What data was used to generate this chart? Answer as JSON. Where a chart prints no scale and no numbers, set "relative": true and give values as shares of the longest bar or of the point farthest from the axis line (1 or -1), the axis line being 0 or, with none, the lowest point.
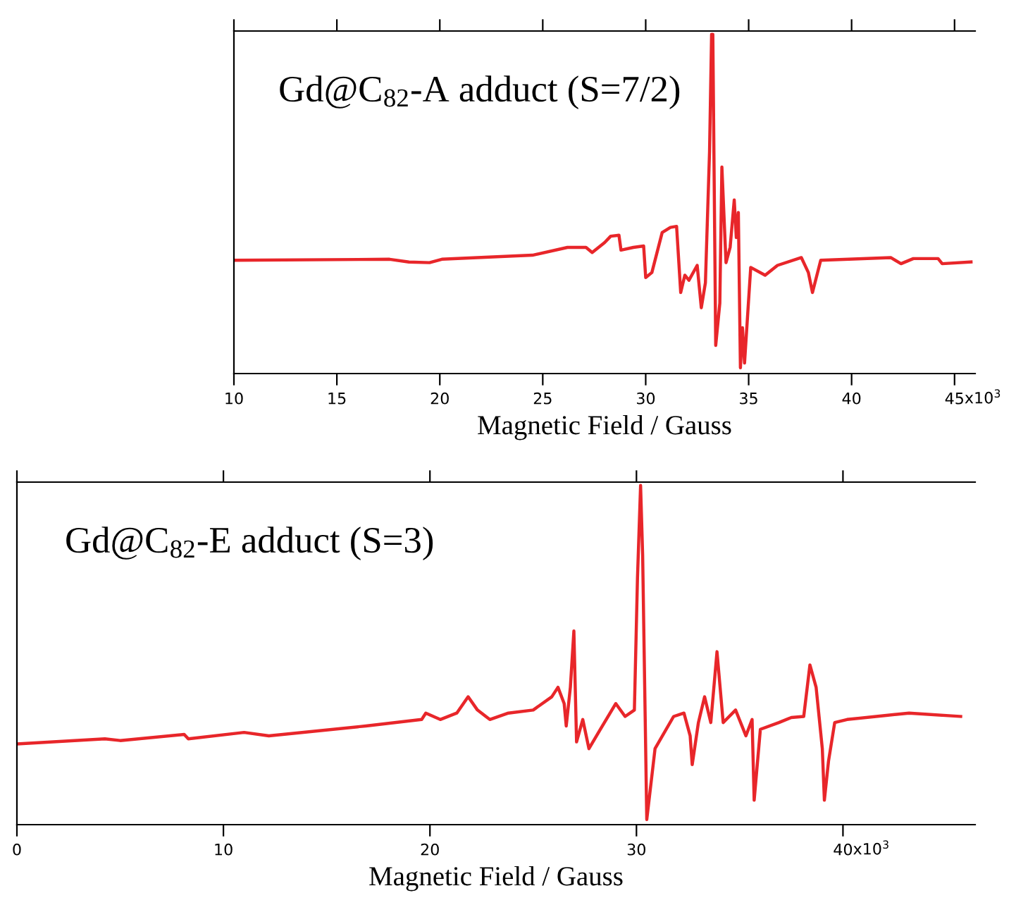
{
  "chart_data": [
    {
      "type": "line",
      "relative": true,
      "xlabel": "Magnetic Field / Gauss",
      "annotations": [
        "Gd@C$_{82}$-A adduct (S=7/2)",
        "x10$^{3}$"
      ],
      "xlim": [
        10,
        46
      ],
      "xticks": [
        10,
        15,
        20,
        25,
        30,
        35,
        40,
        45
      ],
      "grid": false,
      "legend": false,
      "marker": "none",
      "line_style": "solid",
      "series": [
        {
          "color": "#e8262a",
          "x": [
            10,
            17.56,
            18.5,
            19.5,
            20.1,
            24.5,
            26.2,
            27.1,
            27.4,
            28.0,
            28.3,
            28.7,
            28.8,
            29.4,
            29.9,
            30.0,
            30.3,
            30.8,
            31.2,
            31.5,
            31.7,
            31.9,
            32.1,
            32.5,
            32.7,
            32.9,
            33.1,
            33.2,
            33.26,
            33.4,
            33.6,
            33.7,
            33.9,
            34.1,
            34.3,
            34.4,
            34.5,
            34.6,
            34.7,
            34.8,
            35.1,
            35.8,
            36.4,
            37.56,
            37.9,
            38.1,
            38.5,
            41.9,
            42.4,
            43.0,
            44.2,
            44.4,
            45.8
          ],
          "values": [
            0.334,
            0.337,
            0.329,
            0.327,
            0.337,
            0.349,
            0.372,
            0.372,
            0.357,
            0.386,
            0.405,
            0.408,
            0.364,
            0.372,
            0.376,
            0.283,
            0.298,
            0.416,
            0.431,
            0.434,
            0.239,
            0.29,
            0.275,
            0.319,
            0.194,
            0.268,
            0.653,
            1.0,
            1.0,
            0.083,
            0.208,
            0.609,
            0.327,
            0.372,
            0.512,
            0.401,
            0.475,
            0.017,
            0.135,
            0.031,
            0.313,
            0.29,
            0.319,
            0.342,
            0.298,
            0.239,
            0.334,
            0.342,
            0.324,
            0.339,
            0.339,
            0.324,
            0.329
          ]
        }
      ]
    },
    {
      "type": "line",
      "relative": true,
      "xlabel": "Magnetic Field / Gauss",
      "annotations": [
        "Gd@C$_{82}$-E adduct (S=3)",
        "x10$^{3}$"
      ],
      "xlim": [
        0,
        46.4
      ],
      "xticks": [
        0,
        10,
        20,
        30,
        40
      ],
      "grid": false,
      "legend": false,
      "marker": "none",
      "line_style": "solid",
      "series": [
        {
          "color": "#e8262a",
          "x": [
            0,
            4.26,
            5.0,
            8.1,
            8.3,
            11.0,
            12.2,
            16.9,
            19.6,
            19.8,
            20.5,
            21.3,
            21.85,
            22.3,
            22.9,
            23.8,
            25.0,
            25.9,
            26.2,
            26.5,
            26.6,
            26.8,
            26.97,
            27.1,
            27.4,
            27.7,
            28.25,
            29.0,
            29.45,
            29.9,
            30.05,
            30.2,
            30.3,
            30.5,
            30.9,
            31.8,
            32.3,
            32.6,
            32.7,
            33.0,
            33.3,
            33.6,
            33.9,
            34.2,
            34.8,
            35.3,
            35.6,
            35.7,
            36.0,
            36.9,
            37.5,
            38.1,
            38.4,
            38.7,
            39.0,
            39.1,
            39.3,
            39.6,
            40.2,
            43.2,
            45.7
          ],
          "values": [
            0.238,
            0.253,
            0.248,
            0.266,
            0.253,
            0.272,
            0.262,
            0.291,
            0.31,
            0.329,
            0.31,
            0.329,
            0.377,
            0.338,
            0.31,
            0.329,
            0.338,
            0.377,
            0.405,
            0.357,
            0.291,
            0.405,
            0.571,
            0.244,
            0.31,
            0.224,
            0.281,
            0.357,
            0.319,
            0.338,
            0.728,
            1.0,
            0.795,
            0.015,
            0.224,
            0.319,
            0.329,
            0.262,
            0.177,
            0.301,
            0.377,
            0.301,
            0.51,
            0.301,
            0.338,
            0.262,
            0.31,
            0.072,
            0.281,
            0.301,
            0.316,
            0.319,
            0.471,
            0.405,
            0.224,
            0.072,
            0.187,
            0.301,
            0.31,
            0.329,
            0.319
          ]
        }
      ]
    }
  ]
}
